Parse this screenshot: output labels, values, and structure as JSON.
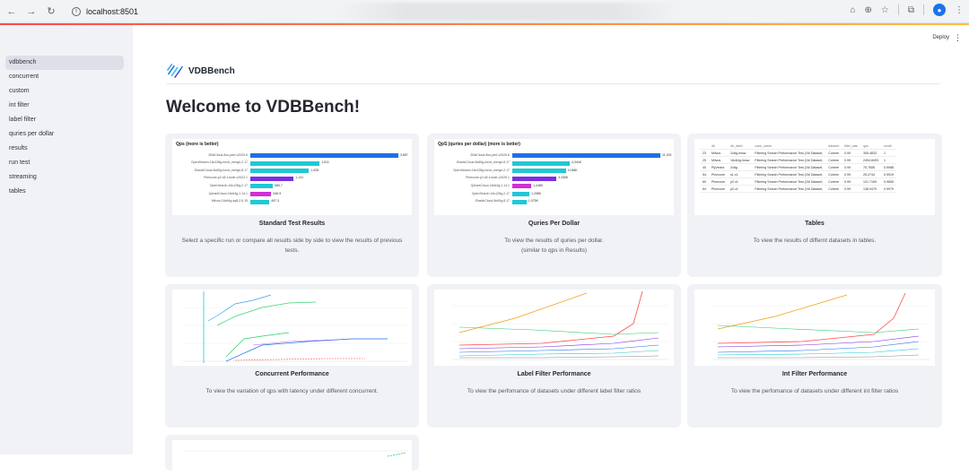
{
  "browser": {
    "url": "localhost:8501"
  },
  "header": {
    "deploy_label": "Deploy"
  },
  "sidebar": {
    "items": [
      {
        "label": "vdbbench",
        "active": true
      },
      {
        "label": "concurrent"
      },
      {
        "label": "custom"
      },
      {
        "label": "int filter"
      },
      {
        "label": "label filter"
      },
      {
        "label": "quries per dollar"
      },
      {
        "label": "results"
      },
      {
        "label": "run test"
      },
      {
        "label": "streaming"
      },
      {
        "label": "tables"
      }
    ]
  },
  "brand": {
    "name": "VDBBench"
  },
  "page": {
    "title": "Welcome to VDBBench!"
  },
  "cards": [
    {
      "title": "Standard Test Results",
      "desc": "Select a specific run or compare all results side by side to view the results of previous tests.",
      "thumb_title": "Qps (more is better)",
      "bars": [
        {
          "label": "ZillizCloud-8cu-perf-v2025.6",
          "value": 3857,
          "display": "3,857",
          "color": "#1f6fe5"
        },
        {
          "label": "OpenSearch-16c128g-force_merge-2.17",
          "value": 1811,
          "display": "1,811",
          "color": "#1fc8d6"
        },
        {
          "label": "ElasticCloud-8c60g-force_merge-8.17",
          "value": 1528,
          "display": "1,528",
          "color": "#1fc8d6"
        },
        {
          "label": "Pinecone-p2.x8-1node-v2022.1",
          "value": 1131,
          "display": "1,131",
          "color": "#7b2fe0"
        },
        {
          "label": "OpenSearch-16c128g-2.17",
          "value": 585.7,
          "display": "585.7",
          "color": "#1fc8d6"
        },
        {
          "label": "QdrantCloud-16c64g-1.14.1",
          "value": 546.9,
          "display": "546.9",
          "color": "#d12fd6"
        },
        {
          "label": "Milvus-16c64g-sq8-2.6.15",
          "value": 497.3,
          "display": "497.3",
          "color": "#1fc8d6"
        }
      ]
    },
    {
      "title": "Quries Per Dollar",
      "desc": "To view the results of quries per dollar.",
      "desc2": "(similar to qps in Results)",
      "thumb_title": "QpS (quries per dollar) (more is better)",
      "bars": [
        {
          "label": "ZillizCloud-8cu-perf-v2025.6",
          "value": 11200,
          "display": "11,200",
          "color": "#1f6fe5"
        },
        {
          "label": "ElasticCloud-8c60g-force_merge-8.17",
          "value": 4344,
          "display": "4,344K",
          "color": "#1fc8d6"
        },
        {
          "label": "OpenSearch-16c128g-force_merge-2.17",
          "value": 4048,
          "display": "4,048K",
          "color": "#1fc8d6"
        },
        {
          "label": "Pinecone-p2.x8-1node-v2025.1",
          "value": 3336,
          "display": "3,336K",
          "color": "#7b2fe0"
        },
        {
          "label": "QdrantCloud-16c64g-1.14.1",
          "value": 1448,
          "display": "1,448K",
          "color": "#d12fd6"
        },
        {
          "label": "OpenSearch-16c128g-2.17",
          "value": 1298,
          "display": "1,298K",
          "color": "#1fc8d6"
        },
        {
          "label": "ElasticCloud-8c60g-8.17",
          "value": 1075,
          "display": "1,075K",
          "color": "#1fc8d6"
        }
      ]
    },
    {
      "title": "Tables",
      "desc": "To view the results of differnt datasets in tables.",
      "table": {
        "headers": [
          "",
          "db",
          "db_label",
          "case_name",
          "dataset",
          "filter_rate",
          "qps",
          "recall"
        ],
        "rows": [
          [
            "23",
            "Milvus",
            "2c8g-hnsw",
            "Filtering Search Performance Test (1M Dataset,",
            "Cohere",
            "0.99",
            "305.4833",
            "1"
          ],
          [
            "25",
            "Milvus",
            "16c64g-hnsw",
            "Filtering Search Performance Test (1M Dataset,",
            "Cohere",
            "0.99",
            "2494.8493",
            "1"
          ],
          [
            "40",
            "PgVector",
            "2c8g",
            "Filtering Search Performance Test (1M Dataset,",
            "Cohere",
            "0.99",
            "75.7655",
            "0.9988"
          ],
          [
            "54",
            "Pinecone",
            "s1.x1",
            "Filtering Search Performance Test (1M Dataset,",
            "Cohere",
            "0.99",
            "25.2744",
            "0.9919"
          ],
          [
            "60",
            "Pinecone",
            "p2.x1",
            "Filtering Search Performance Test (1M Dataset,",
            "Cohere",
            "0.99",
            "121.7169",
            "0.9655"
          ],
          [
            "64",
            "Pinecone",
            "p2.x1",
            "Filtering Search Performance Test (1M Dataset,",
            "Cohere",
            "0.99",
            "138.9479",
            "0.9979"
          ]
        ]
      }
    },
    {
      "title": "Concurrent Performance",
      "desc": "To view the variation of qps with latency under different concurrent."
    },
    {
      "title": "Label Filter Performance",
      "desc": "To view the perfomance of datasets under different label filter ratios"
    },
    {
      "title": "Int Filter Performance",
      "desc": "To view the perfomance of datasets under different int filter ratios"
    }
  ],
  "colors": {
    "sidebar_bg": "#f0f2f6",
    "accent_red": "#ff4b4b",
    "accent_yellow": "#ffbd45",
    "card_bg": "#f0f2f6"
  }
}
